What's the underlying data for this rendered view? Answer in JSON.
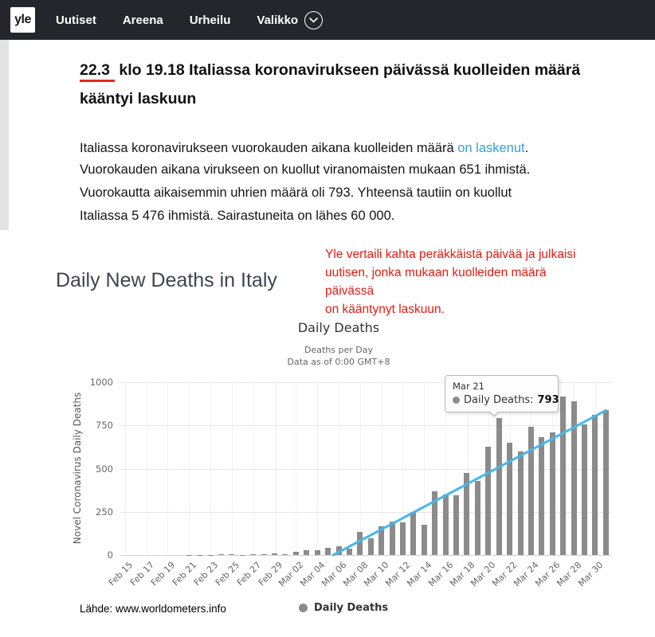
{
  "navbar": {
    "logo": "yle",
    "items": [
      {
        "label": "Uutiset"
      },
      {
        "label": "Areena"
      },
      {
        "label": "Urheilu"
      },
      {
        "label": "Valikko",
        "has_chevron": true
      }
    ]
  },
  "article": {
    "headline": {
      "date": "22.3",
      "line1_rest": " klo 19.18 Italiassa koronavirukseen päivässä kuolleiden määrä",
      "line2": "kääntyi laskuun"
    },
    "p1_before": "Italiassa koronavirukseen vuorokauden aikana kuolleiden määrä ",
    "p1_link": "on laskenut",
    "p1_after": ".",
    "p2_lines": [
      "Vuorokauden aikana virukseen on kuollut viranomaisten mukaan 651 ihmistä.",
      "Vuorokautta aikaisemmin uhrien määrä oli 793. Yhteensä tautiin on kuollut",
      "Italiassa 5 476 ihmistä. Sairastuneita on lähes 60 000."
    ],
    "link_color": "#33a0d8"
  },
  "annotation": {
    "lines": [
      "Yle vertaili kahta peräkkäistä päivää ja julkaisi",
      "uutisen, jonka mukaan kuolleiden määrä päivässä",
      "on kääntynyt laskuun."
    ],
    "color": "#e8190f"
  },
  "section_title": "Daily New Deaths in Italy",
  "chart_data": {
    "type": "bar",
    "title": "Daily Deaths",
    "subtitle1": "Deaths per Day",
    "subtitle2": "Data as of 0:00 GMT+8",
    "ylabel": "Novel Coronavirus Daily Deaths",
    "ylim": [
      0,
      1000
    ],
    "yticks": [
      0,
      250,
      500,
      750,
      1000
    ],
    "x_tick_every": 2,
    "grid": true,
    "legend_position": "bottom",
    "bar_color": "#8b8b8b",
    "trend_color": "#45b8ec",
    "categories": [
      "Feb 15",
      "Feb 16",
      "Feb 17",
      "Feb 18",
      "Feb 19",
      "Feb 20",
      "Feb 21",
      "Feb 22",
      "Feb 23",
      "Feb 24",
      "Feb 25",
      "Feb 26",
      "Feb 27",
      "Feb 28",
      "Feb 29",
      "Mar 01",
      "Mar 02",
      "Mar 03",
      "Mar 04",
      "Mar 05",
      "Mar 06",
      "Mar 07",
      "Mar 08",
      "Mar 09",
      "Mar 10",
      "Mar 11",
      "Mar 12",
      "Mar 13",
      "Mar 14",
      "Mar 15",
      "Mar 16",
      "Mar 17",
      "Mar 18",
      "Mar 19",
      "Mar 20",
      "Mar 21",
      "Mar 22",
      "Mar 23",
      "Mar 24",
      "Mar 25",
      "Mar 26",
      "Mar 27",
      "Mar 28",
      "Mar 29",
      "Mar 30",
      "Mar 31"
    ],
    "values": [
      0,
      0,
      0,
      0,
      0,
      0,
      1,
      2,
      1,
      4,
      4,
      2,
      5,
      4,
      8,
      5,
      18,
      27,
      28,
      41,
      49,
      36,
      133,
      97,
      168,
      196,
      189,
      250,
      175,
      368,
      349,
      345,
      475,
      427,
      627,
      793,
      651,
      601,
      743,
      683,
      712,
      919,
      889,
      756,
      812,
      837
    ],
    "series_name": "Daily Deaths",
    "trendline": {
      "start_index": 19.5,
      "start_value": 0,
      "end_index": 45,
      "end_value": 837
    }
  },
  "tooltip": {
    "date": "Mar 21",
    "series": "Daily Deaths: ",
    "value": "793"
  },
  "footer": {
    "source": "Lähde: www.worldometers.info",
    "legend_label": "Daily Deaths"
  }
}
